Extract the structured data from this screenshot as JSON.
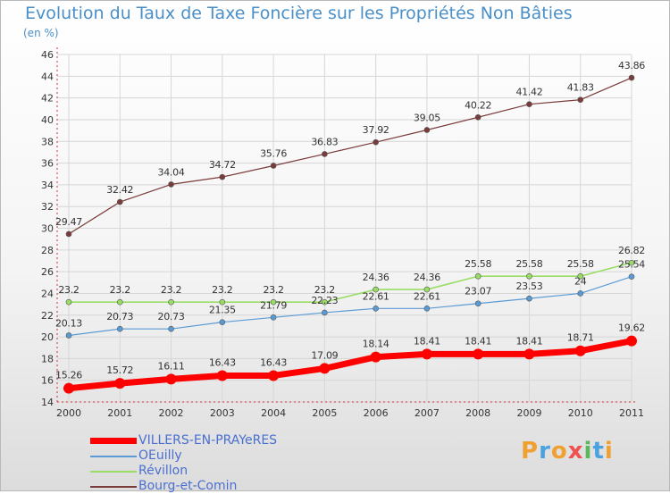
{
  "header": {
    "title": "Evolution du Taux de Taxe Foncière sur les Propriétés Non Bâties",
    "unit": "(en %)"
  },
  "brand": {
    "logo_text": "Proxiti"
  },
  "colors": {
    "axis": "#cc3333",
    "grid": "#d6d6d6",
    "label": "#333333"
  },
  "chart_data": {
    "type": "line",
    "title": "Evolution du Taux de Taxe Foncière sur les Propriétés Non Bâties",
    "ylabel": "(en %)",
    "xlabel": "",
    "x": [
      "2000",
      "2001",
      "2002",
      "2003",
      "2004",
      "2005",
      "2006",
      "2007",
      "2008",
      "2009",
      "2010",
      "2011"
    ],
    "ylim": [
      14,
      46
    ],
    "yticks": [
      14,
      16,
      18,
      20,
      22,
      24,
      26,
      28,
      30,
      32,
      34,
      36,
      38,
      40,
      42,
      44,
      46
    ],
    "grid": true,
    "legend_position": "bottom-left",
    "series": [
      {
        "name": "VILLERS-EN-PRAYeRES",
        "color": "#ff0000",
        "values": [
          15.26,
          15.72,
          16.11,
          16.43,
          16.43,
          17.09,
          18.14,
          18.41,
          18.41,
          18.41,
          18.71,
          19.62
        ],
        "labels": [
          "15.26",
          "15.72",
          "16.11",
          "16.43",
          "16.43",
          "17.09",
          "18.14",
          "18.41",
          "18.41",
          "18.41",
          "18.71",
          "19.62"
        ]
      },
      {
        "name": "OEuilly",
        "color": "#5b9bd5",
        "values": [
          20.13,
          20.73,
          20.73,
          21.35,
          21.79,
          22.23,
          22.61,
          22.61,
          23.07,
          23.53,
          24,
          25.54
        ],
        "labels": [
          "20.13",
          "20.73",
          "20.73",
          "21.35",
          "21.79",
          "22.23",
          "22.61",
          "22.61",
          "23.07",
          "23.53",
          "24",
          "25.54"
        ]
      },
      {
        "name": "Révillon",
        "color": "#99dd66",
        "values": [
          23.2,
          23.2,
          23.2,
          23.2,
          23.2,
          23.2,
          24.36,
          24.36,
          25.58,
          25.58,
          25.58,
          26.82
        ],
        "labels": [
          "23.2",
          "23.2",
          "23.2",
          "23.2",
          "23.2",
          "23.2",
          "24.36",
          "24.36",
          "25.58",
          "25.58",
          "25.58",
          "26.82"
        ]
      },
      {
        "name": "Bourg-et-Comin",
        "color": "#7a3b3b",
        "values": [
          29.47,
          32.42,
          34.04,
          34.72,
          35.76,
          36.83,
          37.92,
          39.05,
          40.22,
          41.42,
          41.83,
          43.86
        ],
        "labels": [
          "29.47",
          "32.42",
          "34.04",
          "34.72",
          "35.76",
          "36.83",
          "37.92",
          "39.05",
          "40.22",
          "41.42",
          "41.83",
          "43.86"
        ]
      }
    ]
  }
}
